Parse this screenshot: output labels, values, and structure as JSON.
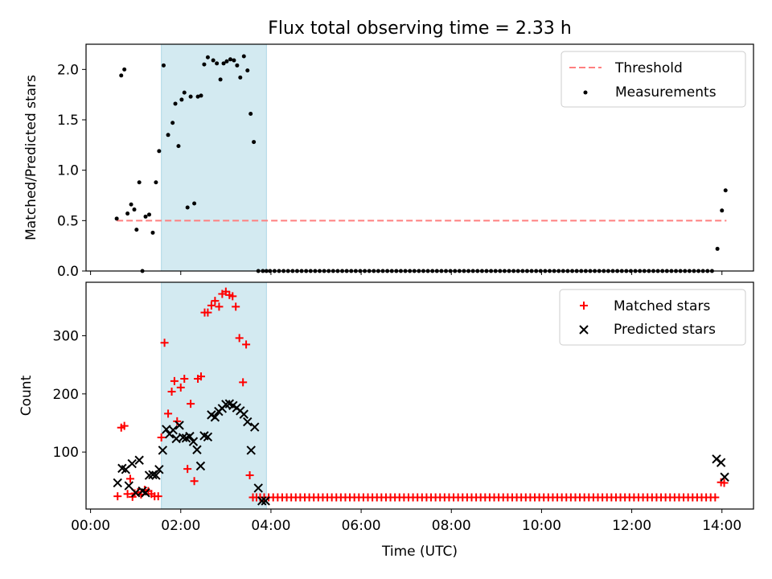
{
  "title": "Flux total observing time = 2.33 h",
  "colors": {
    "measurement": "#000000",
    "threshold": "#ff7f7f",
    "shade": "#d3eaf1",
    "matched": "#ff0000",
    "predicted": "#000000"
  },
  "chart_data": [
    {
      "type": "scatter",
      "ylabel": "Matched/Predicted stars",
      "xlim": [
        -0.1,
        14.7
      ],
      "ylim": [
        0,
        2.25
      ],
      "yticks": [
        "0.0",
        "0.5",
        "1.0",
        "1.5",
        "2.0"
      ],
      "ytick_values": [
        0,
        0.5,
        1.0,
        1.5,
        2.0
      ],
      "legend_placement": "upper-right",
      "shaded_span": [
        1.57,
        3.9
      ],
      "threshold": {
        "name": "Threshold",
        "y": 0.5,
        "x": [
          0.58,
          14.1
        ]
      },
      "series": [
        {
          "name": "Measurements",
          "x": [
            0.58,
            0.68,
            0.75,
            0.82,
            0.9,
            0.97,
            1.02,
            1.08,
            1.15,
            1.22,
            1.3,
            1.38,
            1.45,
            1.52,
            1.62,
            1.72,
            1.82,
            1.88,
            1.95,
            2.02,
            2.08,
            2.15,
            2.22,
            2.3,
            2.38,
            2.45,
            2.52,
            2.6,
            2.72,
            2.8,
            2.88,
            2.95,
            3.02,
            3.1,
            3.18,
            3.25,
            3.32,
            3.4,
            3.48,
            3.55,
            3.62,
            3.72,
            3.82,
            3.9,
            13.9,
            14.0,
            14.08
          ],
          "y": [
            0.52,
            1.94,
            2.0,
            0.57,
            0.66,
            0.61,
            0.41,
            0.88,
            0.0,
            0.54,
            0.56,
            0.38,
            0.88,
            1.19,
            2.04,
            1.35,
            1.47,
            1.66,
            1.24,
            1.7,
            1.77,
            0.63,
            1.73,
            0.67,
            1.73,
            1.74,
            2.05,
            2.12,
            2.09,
            2.06,
            1.9,
            2.06,
            2.08,
            2.1,
            2.09,
            2.04,
            1.92,
            2.13,
            1.99,
            1.56,
            1.28,
            0.0,
            0.0,
            0.0,
            0.22,
            0.6,
            0.8
          ]
        }
      ],
      "zero_band": {
        "from": 3.98,
        "to": 13.85,
        "step": 0.1,
        "y": 0.0
      }
    },
    {
      "type": "scatter",
      "xlabel": "Time (UTC)",
      "ylabel": "Count",
      "xlim": [
        -0.1,
        14.7
      ],
      "ylim": [
        2,
        392
      ],
      "xticks": [
        "00:00",
        "02:00",
        "04:00",
        "06:00",
        "08:00",
        "10:00",
        "12:00",
        "14:00"
      ],
      "xtick_values": [
        0,
        2,
        4,
        6,
        8,
        10,
        12,
        14
      ],
      "yticks": [
        "100",
        "200",
        "300"
      ],
      "ytick_values": [
        100,
        200,
        300
      ],
      "legend_placement": "upper-right",
      "shaded_span": [
        1.57,
        3.9
      ],
      "series": [
        {
          "name": "Matched stars",
          "marker": "plus",
          "x": [
            0.6,
            0.68,
            0.75,
            0.82,
            0.88,
            0.93,
            0.98,
            1.05,
            1.12,
            1.2,
            1.28,
            1.35,
            1.42,
            1.5,
            1.57,
            1.64,
            1.72,
            1.8,
            1.86,
            1.92,
            2.0,
            2.08,
            2.15,
            2.22,
            2.3,
            2.38,
            2.45,
            2.53,
            2.6,
            2.68,
            2.76,
            2.85,
            2.92,
            3.0,
            3.08,
            3.15,
            3.22,
            3.3,
            3.38,
            3.45,
            3.53,
            3.6,
            3.68,
            3.76,
            3.85
          ],
          "y": [
            24,
            142,
            145,
            28,
            54,
            23,
            29,
            31,
            27,
            35,
            33,
            28,
            24,
            24,
            125,
            288,
            166,
            204,
            222,
            153,
            211,
            226,
            71,
            183,
            50,
            226,
            230,
            340,
            340,
            352,
            360,
            350,
            372,
            376,
            370,
            368,
            350,
            296,
            220,
            285,
            60,
            22,
            22,
            22,
            22
          ],
          "band": {
            "from": 3.95,
            "to": 13.9,
            "step": 0.1,
            "y": 22
          },
          "tail": {
            "x": [
              13.98,
              14.05
            ],
            "y": [
              48,
              47
            ]
          }
        },
        {
          "name": "Predicted stars",
          "marker": "x",
          "x": [
            0.6,
            0.7,
            0.78,
            0.85,
            0.92,
            1.0,
            1.08,
            1.15,
            1.22,
            1.3,
            1.38,
            1.45,
            1.52,
            1.6,
            1.68,
            1.75,
            1.83,
            1.9,
            1.97,
            2.05,
            2.12,
            2.2,
            2.28,
            2.36,
            2.44,
            2.52,
            2.6,
            2.68,
            2.76,
            2.84,
            2.92,
            3.0,
            3.08,
            3.16,
            3.24,
            3.32,
            3.4,
            3.48,
            3.56,
            3.64,
            3.72,
            3.8,
            3.88,
            13.88,
            13.98,
            14.06
          ],
          "y": [
            47,
            72,
            70,
            42,
            80,
            30,
            86,
            33,
            30,
            60,
            61,
            60,
            70,
            103,
            139,
            131,
            138,
            123,
            146,
            125,
            124,
            127,
            118,
            104,
            76,
            128,
            126,
            164,
            160,
            170,
            175,
            182,
            183,
            180,
            176,
            171,
            165,
            152,
            103,
            143,
            38,
            16,
            16,
            88,
            82,
            57
          ]
        }
      ]
    }
  ]
}
